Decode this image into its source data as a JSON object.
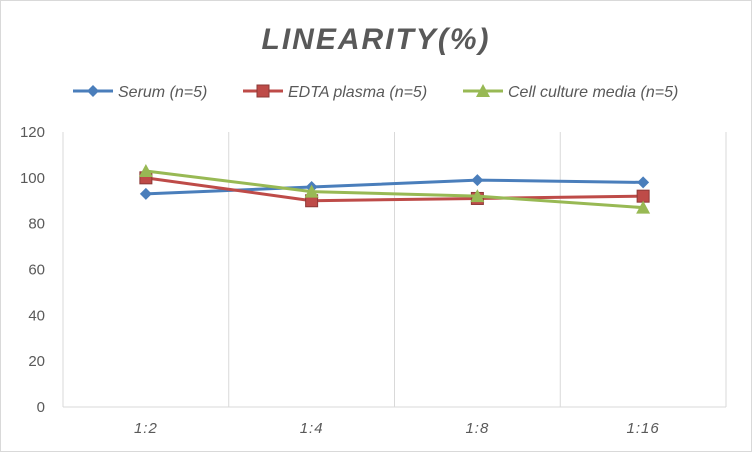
{
  "chart_data": {
    "type": "line",
    "title": "LINEARITY(%)",
    "xlabel": "",
    "ylabel": "",
    "categories": [
      "1:2",
      "1:4",
      "1:8",
      "1:16"
    ],
    "ylim": [
      0,
      120
    ],
    "yticks": [
      0,
      20,
      40,
      60,
      80,
      100,
      120
    ],
    "grid": "vertical",
    "legend": "top",
    "series": [
      {
        "name": "Serum (n=5)",
        "values": [
          93,
          96,
          99,
          98
        ],
        "color": "#4a7ebb",
        "marker": "diamond"
      },
      {
        "name": "EDTA plasma (n=5)",
        "values": [
          100,
          90,
          91,
          92
        ],
        "color": "#be4b48",
        "marker": "square"
      },
      {
        "name": "Cell culture media (n=5)",
        "values": [
          103,
          94,
          92,
          87
        ],
        "color": "#98b954",
        "marker": "triangle"
      }
    ]
  }
}
